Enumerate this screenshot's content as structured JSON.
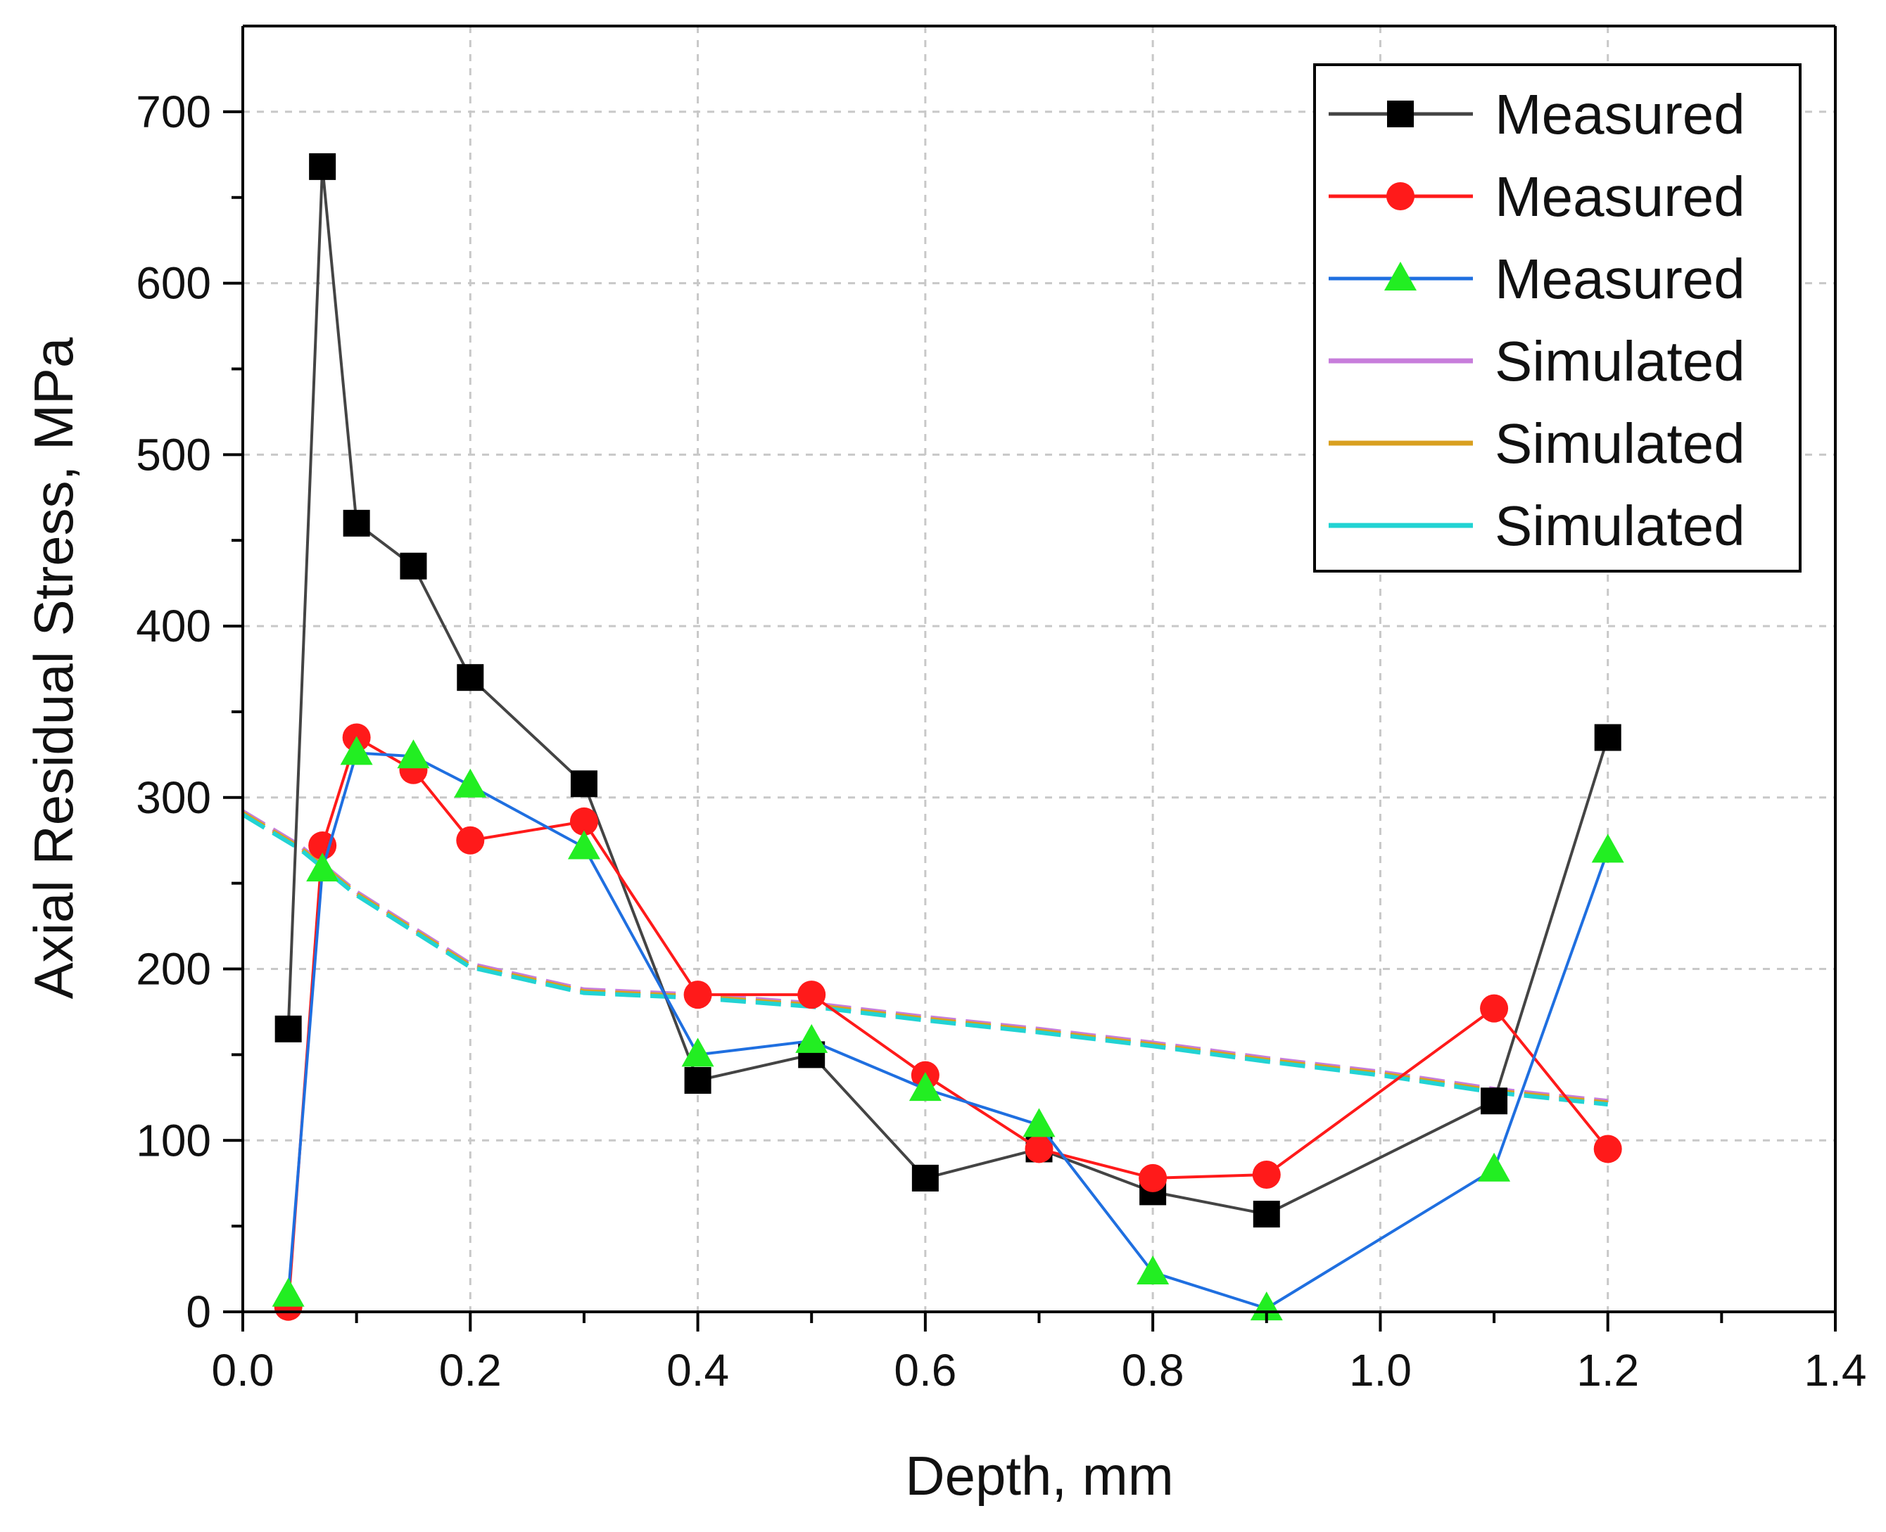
{
  "chart_data": {
    "type": "line",
    "title": "",
    "xlabel": "Depth, mm",
    "ylabel": "Axial Residual Stress, MPa",
    "xlim": [
      0.0,
      1.4
    ],
    "ylim": [
      0,
      750
    ],
    "x_ticks": [
      "0.0",
      "0.2",
      "0.4",
      "0.6",
      "0.8",
      "1.0",
      "1.2",
      "1.4"
    ],
    "y_ticks": [
      "0",
      "100",
      "200",
      "300",
      "400",
      "500",
      "600",
      "700"
    ],
    "grid": "dashed vertical and horizontal",
    "legend_position": "top-right",
    "series": [
      {
        "name": "Measured",
        "line_color": "#444444",
        "marker": "square",
        "marker_color": "#000000",
        "dashed": false,
        "x": [
          0.04,
          0.07,
          0.1,
          0.15,
          0.2,
          0.3,
          0.4,
          0.5,
          0.6,
          0.7,
          0.8,
          0.9,
          1.1,
          1.2
        ],
        "y": [
          165,
          668,
          460,
          435,
          370,
          308,
          135,
          150,
          78,
          95,
          70,
          57,
          123,
          335
        ]
      },
      {
        "name": "Measured",
        "line_color": "#ff1a1a",
        "marker": "circle",
        "marker_color": "#ff1a1a",
        "dashed": false,
        "x": [
          0.04,
          0.07,
          0.1,
          0.15,
          0.2,
          0.3,
          0.4,
          0.5,
          0.6,
          0.7,
          0.8,
          0.9,
          1.1,
          1.2
        ],
        "y": [
          3,
          272,
          335,
          316,
          275,
          286,
          185,
          185,
          138,
          95,
          78,
          80,
          177,
          95
        ]
      },
      {
        "name": "Measured",
        "line_color": "#1f6fe0",
        "marker": "triangle",
        "marker_color": "#22ee22",
        "dashed": false,
        "x": [
          0.04,
          0.07,
          0.1,
          0.15,
          0.2,
          0.3,
          0.4,
          0.5,
          0.6,
          0.7,
          0.8,
          0.9,
          1.1,
          1.2
        ],
        "y": [
          10,
          258,
          326,
          324,
          307,
          271,
          150,
          158,
          130,
          109,
          23,
          2,
          83,
          269
        ]
      },
      {
        "name": "Simulated",
        "line_color": "#c77ddb",
        "marker": "none",
        "dashed": true,
        "x": [
          0.0,
          0.05,
          0.1,
          0.2,
          0.3,
          0.4,
          0.5,
          0.6,
          0.7,
          0.8,
          0.9,
          1.0,
          1.1,
          1.2
        ],
        "y": [
          292,
          272,
          245,
          203,
          188,
          185,
          180,
          172,
          165,
          157,
          148,
          140,
          130,
          123
        ]
      },
      {
        "name": "Simulated",
        "line_color": "#d9a020",
        "marker": "none",
        "dashed": true,
        "x": [
          0.0,
          0.05,
          0.1,
          0.2,
          0.3,
          0.4,
          0.5,
          0.6,
          0.7,
          0.8,
          0.9,
          1.0,
          1.1,
          1.2
        ],
        "y": [
          291,
          271,
          244,
          202,
          187,
          184,
          179,
          171,
          164,
          156,
          147,
          139,
          129,
          122
        ]
      },
      {
        "name": "Simulated",
        "line_color": "#22d3d3",
        "marker": "none",
        "dashed": true,
        "x": [
          0.0,
          0.05,
          0.1,
          0.2,
          0.3,
          0.4,
          0.5,
          0.6,
          0.7,
          0.8,
          0.9,
          1.0,
          1.1,
          1.2
        ],
        "y": [
          290,
          270,
          243,
          201,
          186,
          183,
          178,
          170,
          163,
          155,
          146,
          138,
          128,
          121
        ]
      }
    ]
  }
}
